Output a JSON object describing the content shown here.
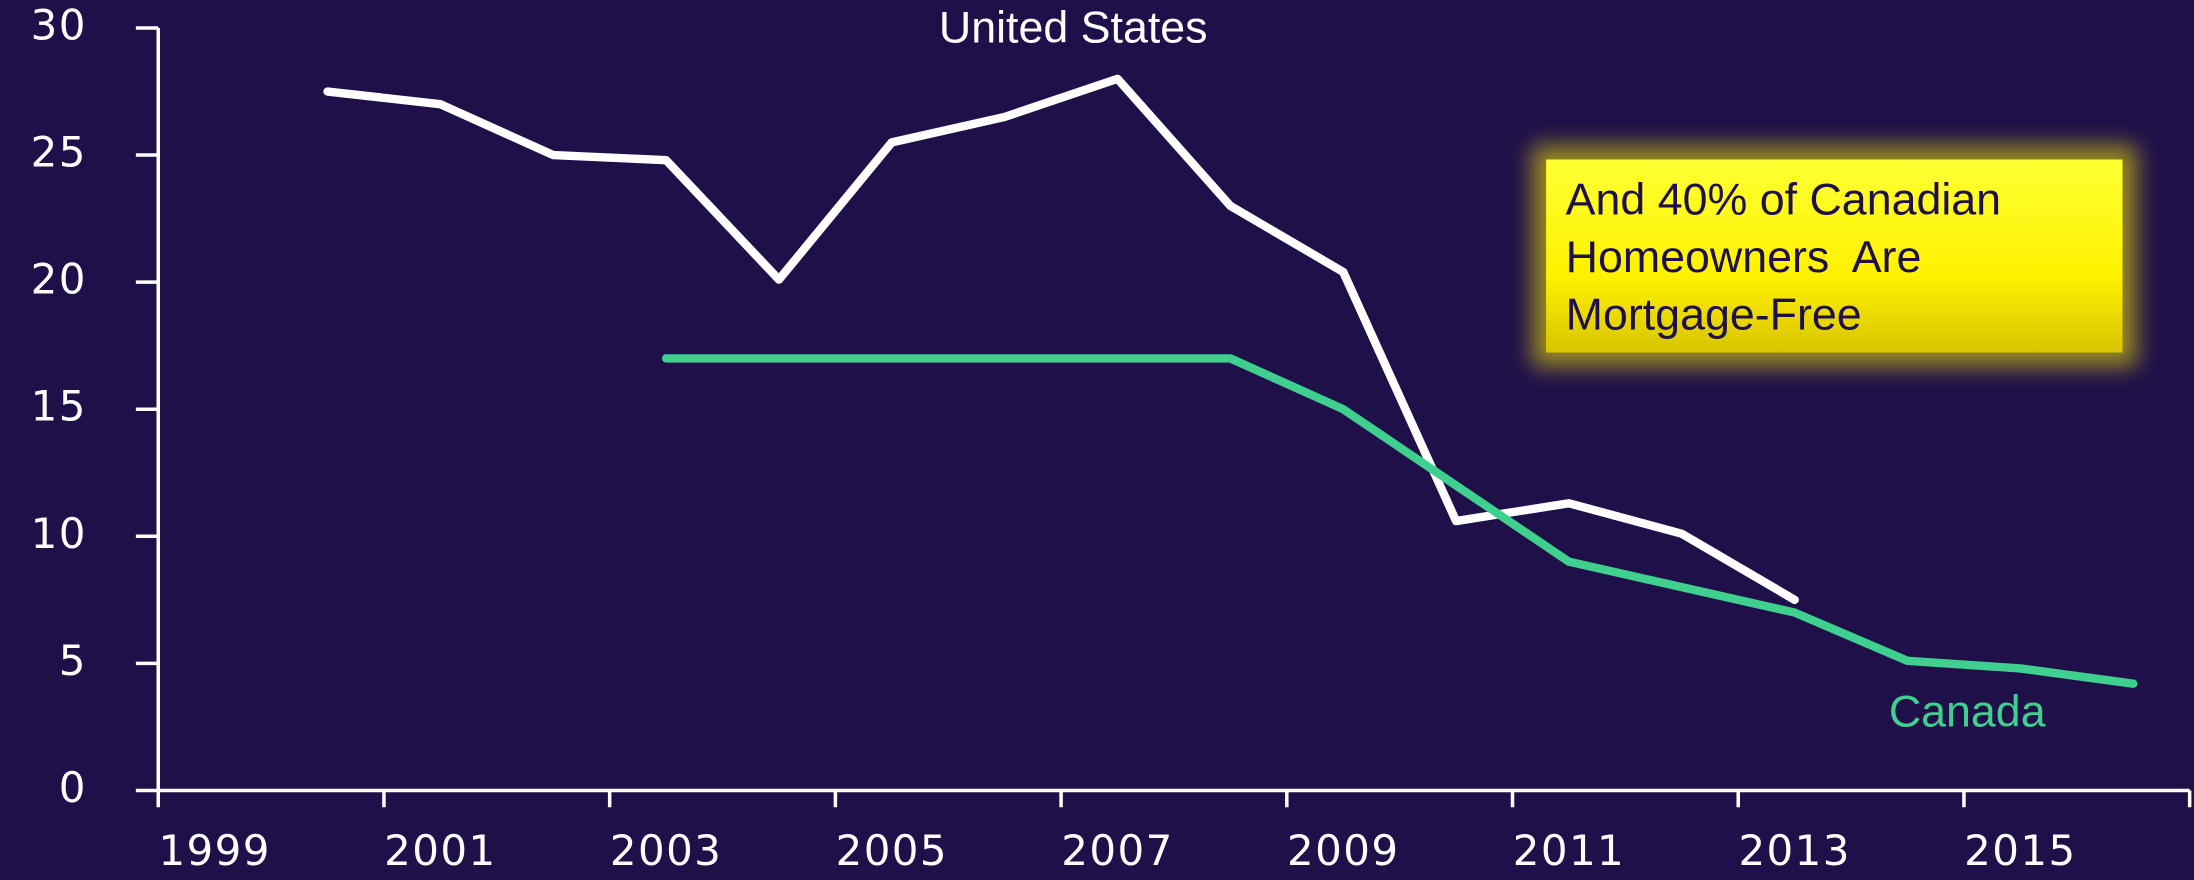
{
  "chart_data": {
    "type": "line",
    "categories": [
      "1999",
      null,
      "2001",
      null,
      "2003",
      null,
      "2005",
      null,
      "2007",
      null,
      "2009",
      null,
      "2011",
      null,
      "2013",
      null,
      "2015",
      null
    ],
    "series": [
      {
        "name": "United States",
        "color": "#ffffff",
        "values": [
          null,
          27.5,
          27.0,
          25.0,
          24.8,
          20.1,
          25.5,
          26.5,
          28.0,
          23.0,
          20.4,
          10.6,
          11.3,
          10.1,
          7.5,
          null,
          null,
          null
        ]
      },
      {
        "name": "Canada",
        "color": "#3fcf8e",
        "values": [
          null,
          null,
          null,
          null,
          17.0,
          17.0,
          17.0,
          17.0,
          17.0,
          17.0,
          15.0,
          12.0,
          9.0,
          8.0,
          7.0,
          5.1,
          4.8,
          4.2
        ]
      }
    ],
    "ylim": [
      0,
      30
    ],
    "yticks": [
      0,
      5,
      10,
      15,
      20,
      25,
      30
    ],
    "annotation": [
      "And 40% of Canadian",
      "Homeowners  Are",
      "Mortgage-Free"
    ]
  }
}
